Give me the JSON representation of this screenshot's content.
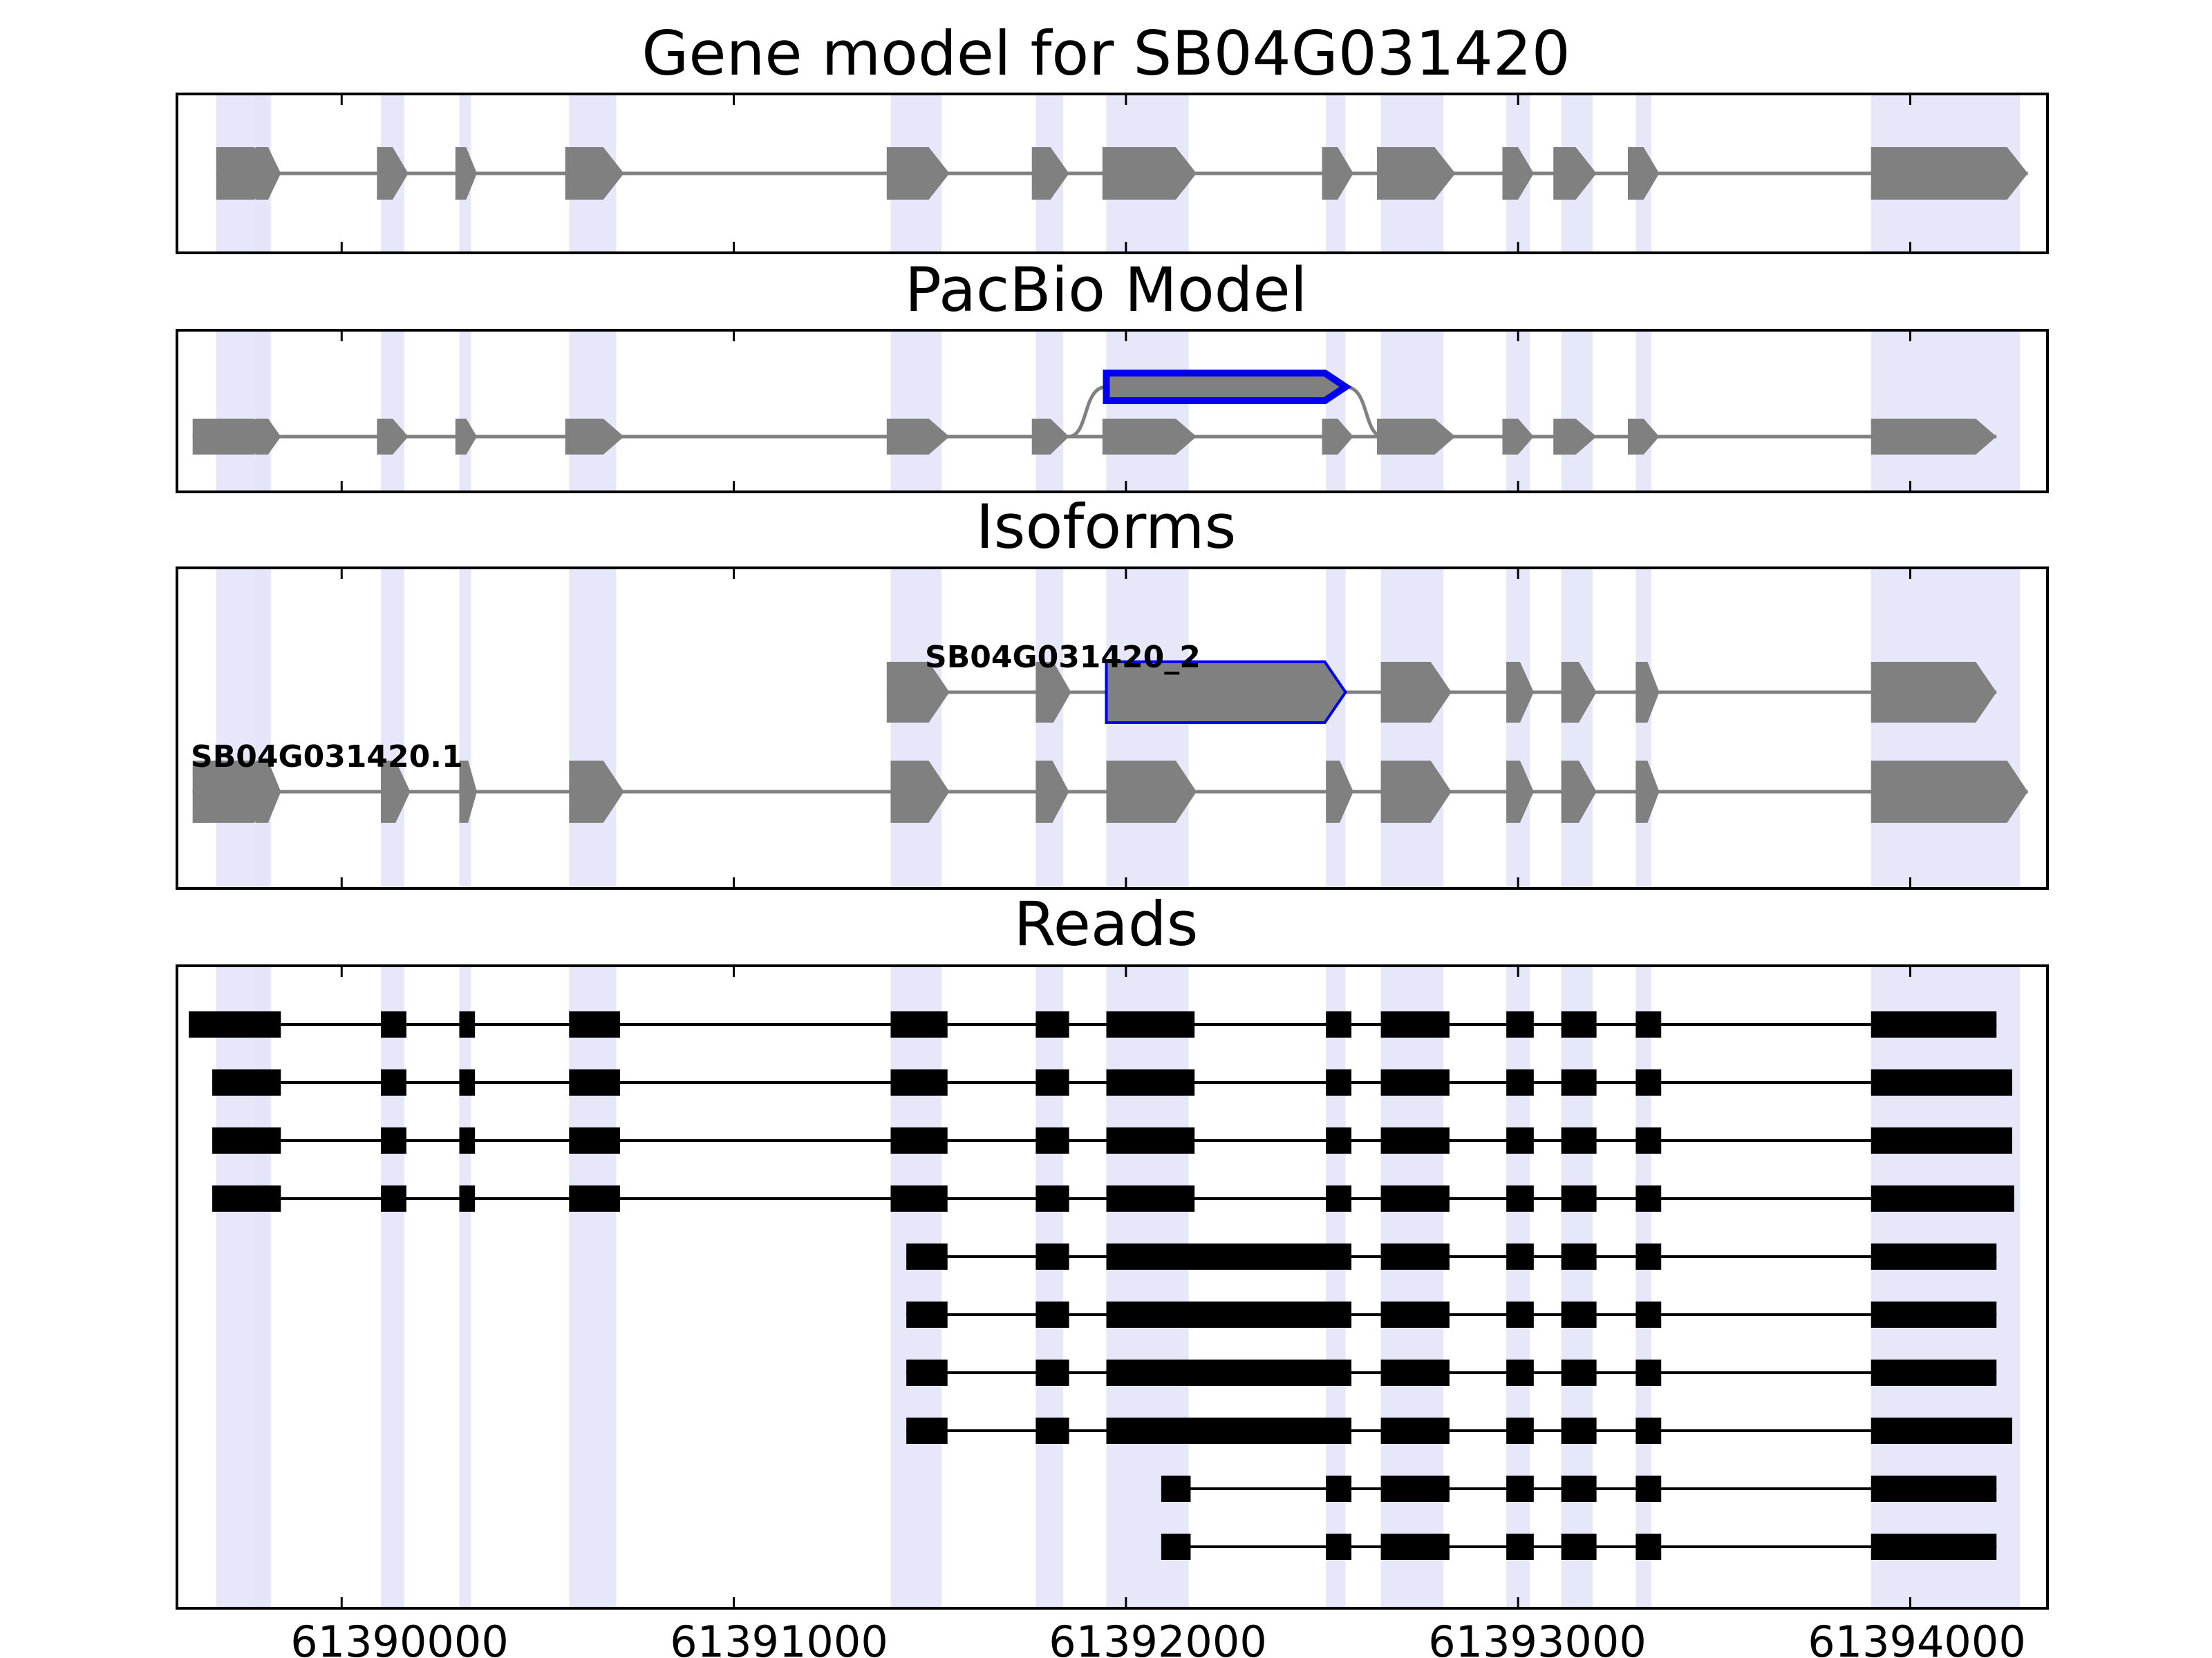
{
  "chart_data": {
    "type": "gene-structure",
    "xaxis": {
      "range": [
        61389580,
        61394350
      ],
      "ticks": [
        61390000,
        61391000,
        61392000,
        61393000,
        61394000
      ],
      "tick_labels": [
        "61390000",
        "61391000",
        "61392000",
        "61393000",
        "61394000"
      ]
    },
    "highlight_regions": [
      [
        61389680,
        61389810
      ],
      [
        61389780,
        61389820
      ],
      [
        61390100,
        61390160
      ],
      [
        61390300,
        61390330
      ],
      [
        61390580,
        61390700
      ],
      [
        61391400,
        61391530
      ],
      [
        61391770,
        61391840
      ],
      [
        61391950,
        61392160
      ],
      [
        61392510,
        61392560
      ],
      [
        61392650,
        61392810
      ],
      [
        61392970,
        61393030
      ],
      [
        61393110,
        61393190
      ],
      [
        61393300,
        61393340
      ],
      [
        61393900,
        61394280
      ]
    ],
    "panels": [
      {
        "title": "Gene model for SB04G031420",
        "isoforms": [
          {
            "label": "",
            "highlight": false,
            "exons": [
              [
                61389680,
                61389830
              ],
              [
                61389780,
                61389845
              ],
              [
                61390090,
                61390170
              ],
              [
                61390290,
                61390345
              ],
              [
                61390570,
                61390720
              ],
              [
                61391390,
                61391550
              ],
              [
                61391760,
                61391855
              ],
              [
                61391940,
                61392180
              ],
              [
                61392500,
                61392580
              ],
              [
                61392640,
                61392840
              ],
              [
                61392960,
                61393040
              ],
              [
                61393090,
                61393200
              ],
              [
                61393280,
                61393360
              ],
              [
                61393900,
                61394300
              ]
            ]
          }
        ]
      },
      {
        "title": "PacBio Model",
        "isoforms": [
          {
            "label": "",
            "highlight": false,
            "exons": [
              [
                61389620,
                61389830
              ],
              [
                61389780,
                61389845
              ],
              [
                61390090,
                61390170
              ],
              [
                61390290,
                61390345
              ],
              [
                61390570,
                61390720
              ],
              [
                61391390,
                61391550
              ],
              [
                61391760,
                61391855
              ],
              [
                61391940,
                61392180
              ],
              [
                61392500,
                61392580
              ],
              [
                61392640,
                61392840
              ],
              [
                61392960,
                61393040
              ],
              [
                61393090,
                61393200
              ],
              [
                61393280,
                61393360
              ],
              [
                61393900,
                61394220
              ]
            ]
          },
          {
            "label": "",
            "highlight": true,
            "exons": [
              [
                61391950,
                61392560
              ]
            ]
          }
        ]
      },
      {
        "title": "Isoforms",
        "isoforms": [
          {
            "label": "SB04G031420_2",
            "highlight": false,
            "exons": [
              [
                61391390,
                61391550
              ],
              [
                61391770,
                61391860
              ],
              [
                61391950,
                61392560
              ],
              [
                61392650,
                61392830
              ],
              [
                61392970,
                61393040
              ],
              [
                61393110,
                61393200
              ],
              [
                61393300,
                61393360
              ],
              [
                61393900,
                61394220
              ]
            ],
            "highlight_exon": 2
          },
          {
            "label": "SB04G031420.1",
            "highlight": false,
            "exons": [
              [
                61389620,
                61389830
              ],
              [
                61389780,
                61389845
              ],
              [
                61390100,
                61390175
              ],
              [
                61390300,
                61390345
              ],
              [
                61390580,
                61390720
              ],
              [
                61391400,
                61391550
              ],
              [
                61391770,
                61391855
              ],
              [
                61391950,
                61392180
              ],
              [
                61392510,
                61392580
              ],
              [
                61392650,
                61392830
              ],
              [
                61392970,
                61393040
              ],
              [
                61393110,
                61393200
              ],
              [
                61393300,
                61393360
              ],
              [
                61393900,
                61394300
              ]
            ]
          }
        ]
      },
      {
        "title": "Reads",
        "reads": [
          [
            [
              61389610,
              61389820
            ],
            [
              61389790,
              61389845
            ],
            [
              61390100,
              61390165
            ],
            [
              61390300,
              61390340
            ],
            [
              61390580,
              61390710
            ],
            [
              61391400,
              61391545
            ],
            [
              61391770,
              61391855
            ],
            [
              61391950,
              61392175
            ],
            [
              61392510,
              61392575
            ],
            [
              61392650,
              61392825
            ],
            [
              61392970,
              61393040
            ],
            [
              61393110,
              61393200
            ],
            [
              61393300,
              61393365
            ],
            [
              61393900,
              61394220
            ]
          ],
          [
            [
              61389670,
              61389820
            ],
            [
              61389790,
              61389845
            ],
            [
              61390100,
              61390165
            ],
            [
              61390300,
              61390340
            ],
            [
              61390580,
              61390710
            ],
            [
              61391400,
              61391545
            ],
            [
              61391770,
              61391855
            ],
            [
              61391950,
              61392175
            ],
            [
              61392510,
              61392575
            ],
            [
              61392650,
              61392825
            ],
            [
              61392970,
              61393040
            ],
            [
              61393110,
              61393200
            ],
            [
              61393300,
              61393365
            ],
            [
              61393900,
              61394260
            ]
          ],
          [
            [
              61389670,
              61389820
            ],
            [
              61389790,
              61389845
            ],
            [
              61390100,
              61390165
            ],
            [
              61390300,
              61390340
            ],
            [
              61390580,
              61390710
            ],
            [
              61391400,
              61391545
            ],
            [
              61391770,
              61391855
            ],
            [
              61391950,
              61392175
            ],
            [
              61392510,
              61392575
            ],
            [
              61392650,
              61392825
            ],
            [
              61392970,
              61393040
            ],
            [
              61393110,
              61393200
            ],
            [
              61393300,
              61393365
            ],
            [
              61393900,
              61394260
            ]
          ],
          [
            [
              61389670,
              61389820
            ],
            [
              61389790,
              61389845
            ],
            [
              61390100,
              61390165
            ],
            [
              61390300,
              61390340
            ],
            [
              61390580,
              61390710
            ],
            [
              61391400,
              61391545
            ],
            [
              61391770,
              61391855
            ],
            [
              61391950,
              61392175
            ],
            [
              61392510,
              61392575
            ],
            [
              61392650,
              61392825
            ],
            [
              61392970,
              61393040
            ],
            [
              61393110,
              61393200
            ],
            [
              61393300,
              61393365
            ],
            [
              61393900,
              61394265
            ]
          ],
          [
            [
              61391440,
              61391545
            ],
            [
              61391770,
              61391855
            ],
            [
              61391950,
              61392575
            ],
            [
              61392650,
              61392825
            ],
            [
              61392970,
              61393040
            ],
            [
              61393110,
              61393200
            ],
            [
              61393300,
              61393365
            ],
            [
              61393900,
              61394220
            ]
          ],
          [
            [
              61391440,
              61391545
            ],
            [
              61391770,
              61391855
            ],
            [
              61391950,
              61392575
            ],
            [
              61392650,
              61392825
            ],
            [
              61392970,
              61393040
            ],
            [
              61393110,
              61393200
            ],
            [
              61393300,
              61393365
            ],
            [
              61393900,
              61394220
            ]
          ],
          [
            [
              61391440,
              61391545
            ],
            [
              61391770,
              61391855
            ],
            [
              61391950,
              61392575
            ],
            [
              61392650,
              61392825
            ],
            [
              61392970,
              61393040
            ],
            [
              61393110,
              61393200
            ],
            [
              61393300,
              61393365
            ],
            [
              61393900,
              61394220
            ]
          ],
          [
            [
              61391440,
              61391545
            ],
            [
              61391770,
              61391855
            ],
            [
              61391950,
              61392575
            ],
            [
              61392650,
              61392825
            ],
            [
              61392970,
              61393040
            ],
            [
              61393110,
              61393200
            ],
            [
              61393300,
              61393365
            ],
            [
              61393900,
              61394260
            ]
          ],
          [
            [
              61392090,
              61392165
            ],
            [
              61392510,
              61392575
            ],
            [
              61392650,
              61392825
            ],
            [
              61392970,
              61393040
            ],
            [
              61393110,
              61393200
            ],
            [
              61393300,
              61393365
            ],
            [
              61393900,
              61394220
            ]
          ],
          [
            [
              61392090,
              61392165
            ],
            [
              61392510,
              61392575
            ],
            [
              61392650,
              61392825
            ],
            [
              61392970,
              61393040
            ],
            [
              61393110,
              61393200
            ],
            [
              61393300,
              61393365
            ],
            [
              61393900,
              61394220
            ]
          ]
        ]
      }
    ],
    "colors": {
      "exon": "#808080",
      "intron": "#808080",
      "highlight_band": "#e4e4fa",
      "highlight_outline": "#0000ee",
      "read": "#000000"
    }
  }
}
